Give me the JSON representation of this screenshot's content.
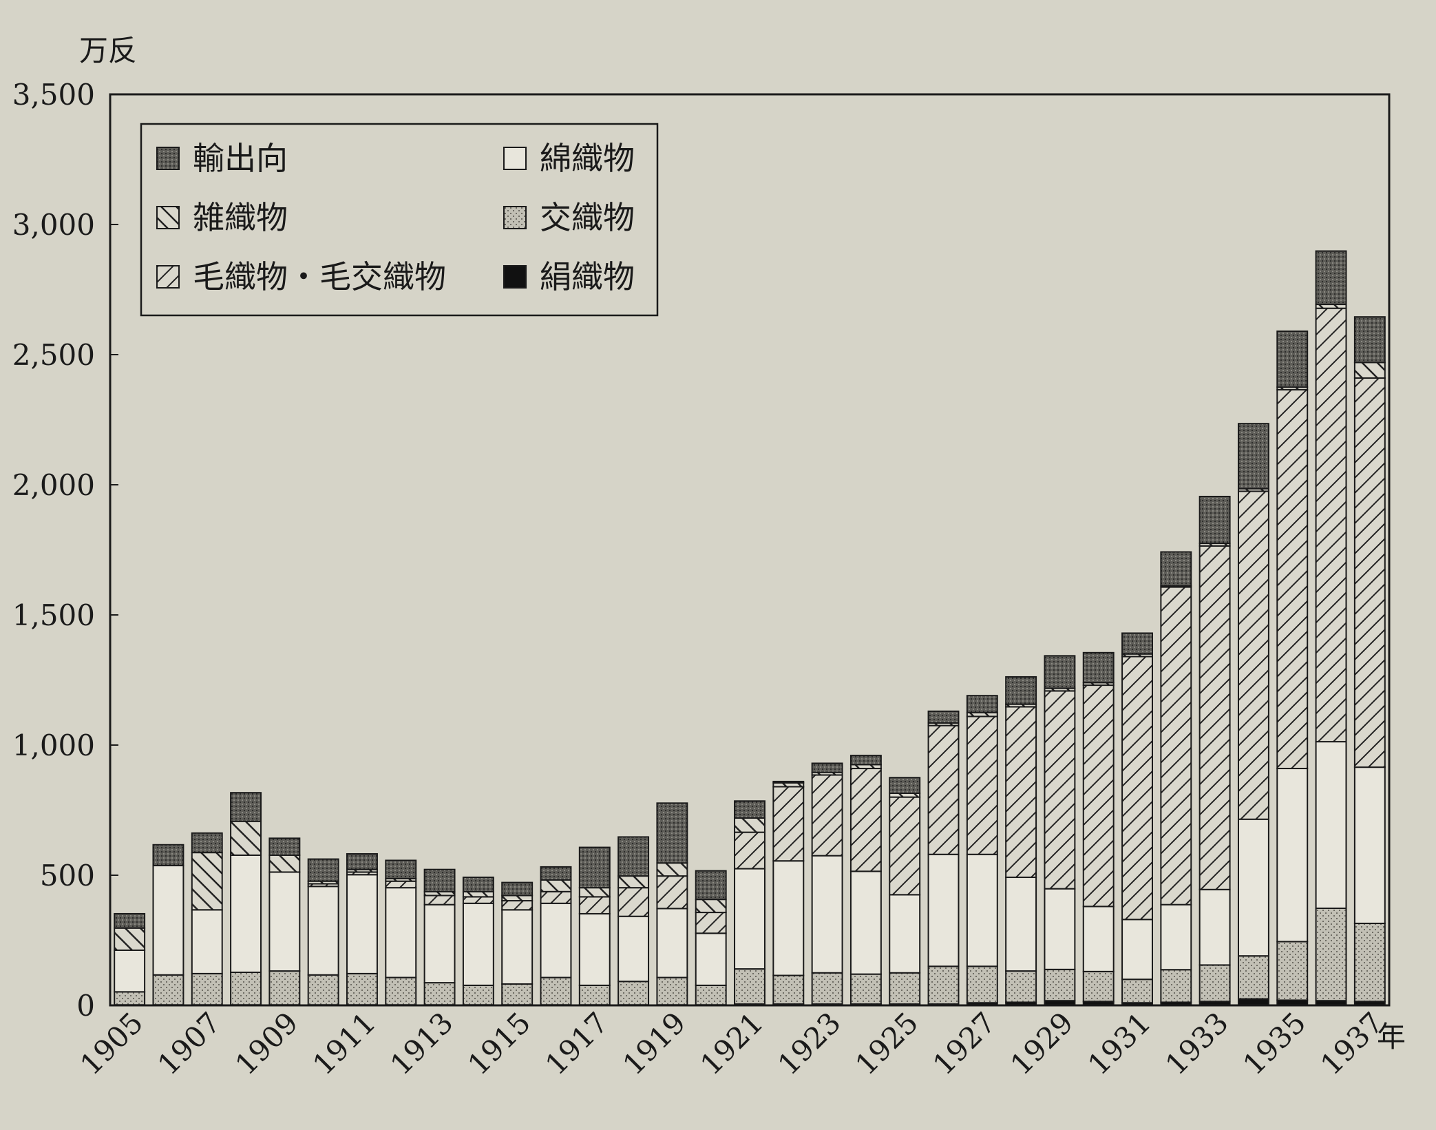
{
  "chart_data": {
    "type": "bar",
    "stacked": true,
    "ylabel": "万反",
    "xlabel": "年",
    "ylim": [
      0,
      3500
    ],
    "yticks": [
      0,
      500,
      1000,
      1500,
      2000,
      2500,
      3000,
      3500
    ],
    "ytick_labels": [
      "0",
      "500",
      "1,000",
      "1,500",
      "2,000",
      "2,500",
      "3,000",
      "3,500"
    ],
    "categories": [
      1905,
      1906,
      1907,
      1908,
      1909,
      1910,
      1911,
      1912,
      1913,
      1914,
      1915,
      1916,
      1917,
      1918,
      1919,
      1920,
      1921,
      1922,
      1923,
      1924,
      1925,
      1926,
      1927,
      1928,
      1929,
      1930,
      1931,
      1932,
      1933,
      1934,
      1935,
      1936,
      1937
    ],
    "xtick_labels": [
      "1905",
      "1907",
      "1909",
      "1911",
      "1913",
      "1915",
      "1917",
      "1919",
      "1921",
      "1923",
      "1925",
      "1927",
      "1929",
      "1931",
      "1933",
      "1935",
      "1937"
    ],
    "legend_position": "top-left",
    "series": [
      {
        "key": "silk",
        "name": "絹織物",
        "pattern": "solid-black",
        "values": [
          2,
          2,
          2,
          2,
          2,
          2,
          2,
          2,
          2,
          2,
          2,
          2,
          2,
          2,
          2,
          2,
          5,
          5,
          5,
          5,
          5,
          5,
          10,
          12,
          18,
          15,
          10,
          12,
          15,
          25,
          20,
          18,
          15
        ]
      },
      {
        "key": "mixed",
        "name": "交織物",
        "pattern": "stipple",
        "values": [
          50,
          115,
          120,
          125,
          130,
          115,
          120,
          105,
          85,
          75,
          80,
          105,
          75,
          90,
          105,
          75,
          135,
          110,
          120,
          115,
          120,
          145,
          140,
          120,
          120,
          115,
          90,
          125,
          140,
          165,
          225,
          355,
          300
        ]
      },
      {
        "key": "cotton",
        "name": "綿織物",
        "pattern": "white",
        "values": [
          160,
          420,
          245,
          450,
          380,
          340,
          380,
          345,
          300,
          315,
          285,
          285,
          275,
          250,
          265,
          200,
          385,
          440,
          450,
          395,
          300,
          430,
          430,
          360,
          310,
          250,
          230,
          250,
          290,
          525,
          665,
          640,
          600
        ]
      },
      {
        "key": "wool",
        "name": "毛織物・毛交織物",
        "pattern": "hatch-right",
        "values": [
          0,
          0,
          0,
          0,
          0,
          10,
          10,
          25,
          35,
          25,
          35,
          45,
          65,
          110,
          125,
          80,
          140,
          285,
          310,
          395,
          375,
          495,
          530,
          655,
          760,
          850,
          1010,
          1220,
          1320,
          1260,
          1455,
          1665,
          1495
        ]
      },
      {
        "key": "misc",
        "name": "雑織物",
        "pattern": "hatch-left",
        "values": [
          85,
          0,
          220,
          130,
          65,
          10,
          10,
          10,
          15,
          20,
          20,
          45,
          35,
          45,
          50,
          50,
          55,
          15,
          10,
          15,
          15,
          10,
          15,
          10,
          10,
          10,
          10,
          5,
          10,
          10,
          10,
          15,
          60
        ]
      },
      {
        "key": "export",
        "name": "輸出向",
        "pattern": "crosshatch",
        "values": [
          55,
          80,
          75,
          110,
          65,
          85,
          60,
          70,
          85,
          55,
          50,
          50,
          155,
          150,
          230,
          110,
          65,
          5,
          35,
          35,
          60,
          45,
          65,
          105,
          125,
          115,
          80,
          130,
          180,
          250,
          215,
          205,
          175
        ]
      }
    ],
    "legend_order": [
      "export",
      "cotton",
      "misc",
      "mixed",
      "wool",
      "silk"
    ]
  }
}
